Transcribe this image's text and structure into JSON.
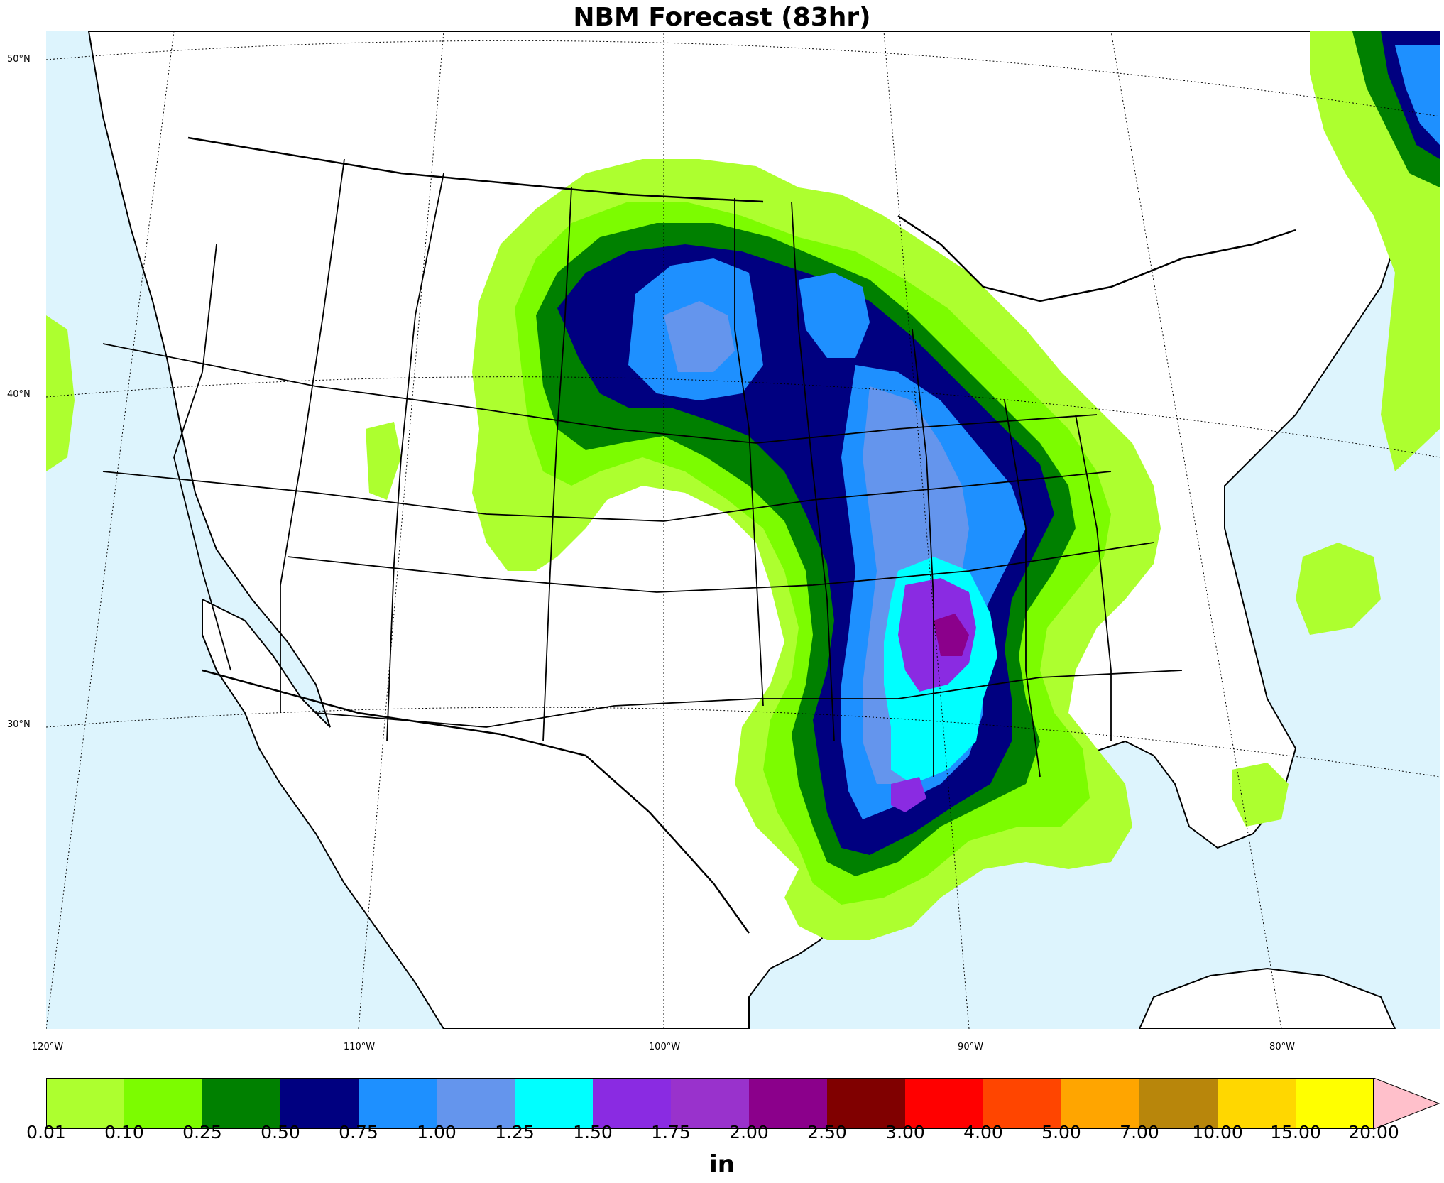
{
  "title": "NBM Forecast (83hr)",
  "colors": {
    "ocean": "#ddf4fd",
    "land": "#ffffff",
    "border": "#000000"
  },
  "latitude_labels": [
    "50°N",
    "40°N",
    "30°N"
  ],
  "longitude_labels": [
    "120°W",
    "110°W",
    "100°W",
    "90°W",
    "80°W"
  ],
  "colorbar": {
    "units": "in",
    "ticks": [
      "0.01",
      "0.10",
      "0.25",
      "0.50",
      "0.75",
      "1.00",
      "1.25",
      "1.50",
      "1.75",
      "2.00",
      "2.50",
      "3.00",
      "4.00",
      "5.00",
      "7.00",
      "10.00",
      "15.00",
      "20.00"
    ],
    "colors": [
      "#adff2f",
      "#7cfc00",
      "#008000",
      "#000080",
      "#1e90ff",
      "#6495ed",
      "#00ffff",
      "#8a2be2",
      "#9932cc",
      "#8b008b",
      "#800000",
      "#ff0000",
      "#ff4500",
      "#ffa500",
      "#b8860b",
      "#ffd700",
      "#ffff00"
    ],
    "extend_color": "#ffc0cb"
  },
  "precip_regions": [
    {
      "level": "0.01-0.10",
      "area": "Central US / Plains broad band"
    },
    {
      "level": "0.50-0.75",
      "area": "South Dakota / Nebraska"
    },
    {
      "level": "1.50-2.50",
      "area": "Arkansas / Mississippi"
    }
  ]
}
